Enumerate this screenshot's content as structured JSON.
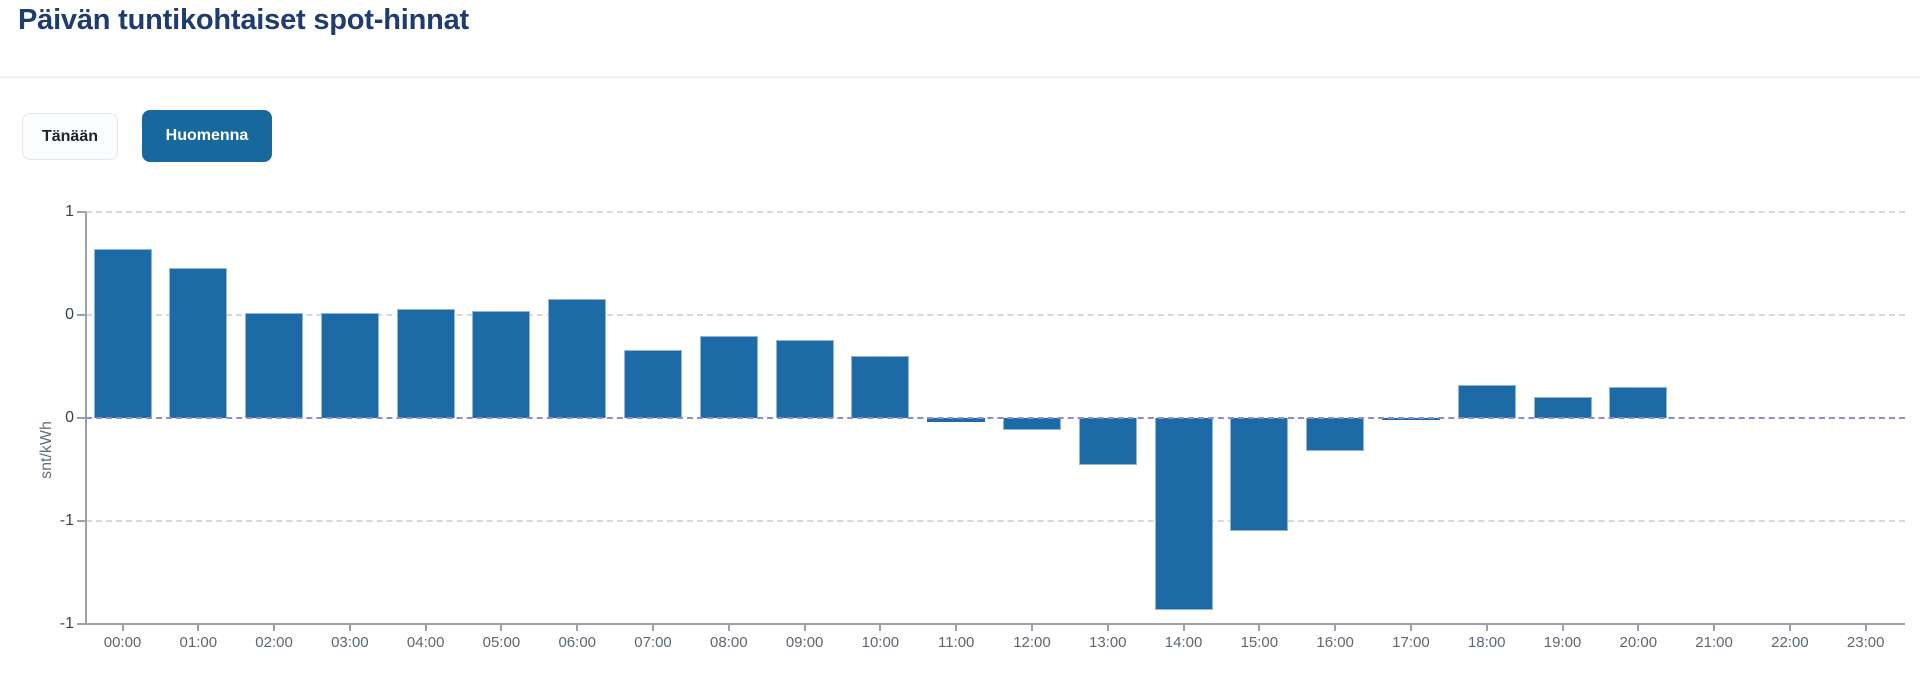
{
  "page": {
    "title": "Päivän tuntikohtaiset spot-hinnat"
  },
  "toolbar": {
    "today_label": "Tänään",
    "tomorrow_label": "Huomenna",
    "selected": "Huomenna"
  },
  "chart_data": {
    "type": "bar",
    "title": "Päivän tuntikohtaiset spot-hinnat",
    "xlabel": "",
    "ylabel": "snt/kWh",
    "categories": [
      "00:00",
      "01:00",
      "02:00",
      "03:00",
      "04:00",
      "05:00",
      "06:00",
      "07:00",
      "08:00",
      "09:00",
      "10:00",
      "11:00",
      "12:00",
      "13:00",
      "14:00",
      "15:00",
      "16:00",
      "17:00",
      "18:00",
      "19:00",
      "20:00",
      "21:00",
      "22:00",
      "23:00"
    ],
    "values": [
      0.82,
      0.73,
      0.51,
      0.51,
      0.53,
      0.52,
      0.58,
      0.33,
      0.4,
      0.38,
      0.3,
      -0.02,
      -0.06,
      -0.23,
      -0.93,
      -0.55,
      -0.16,
      -0.01,
      0.16,
      0.1,
      0.15,
      0,
      0,
      0
    ],
    "ylim": [
      -1,
      1
    ],
    "ytick_values": [
      1,
      0.5,
      0,
      -0.5,
      -1
    ],
    "ytick_labels": [
      "1",
      "0",
      "0",
      "-1",
      "-1"
    ],
    "grid": true,
    "legend": "none",
    "colors": {
      "bar_fill": "#1c6ba7",
      "bar_border": "#93b6d7",
      "zero_line": "#8c8cd8",
      "grid_line": "#d8d8d8",
      "axis_line": "#9ba1a6",
      "title_text": "#1e3c6d",
      "selected_button_bg": "#16689d"
    }
  }
}
